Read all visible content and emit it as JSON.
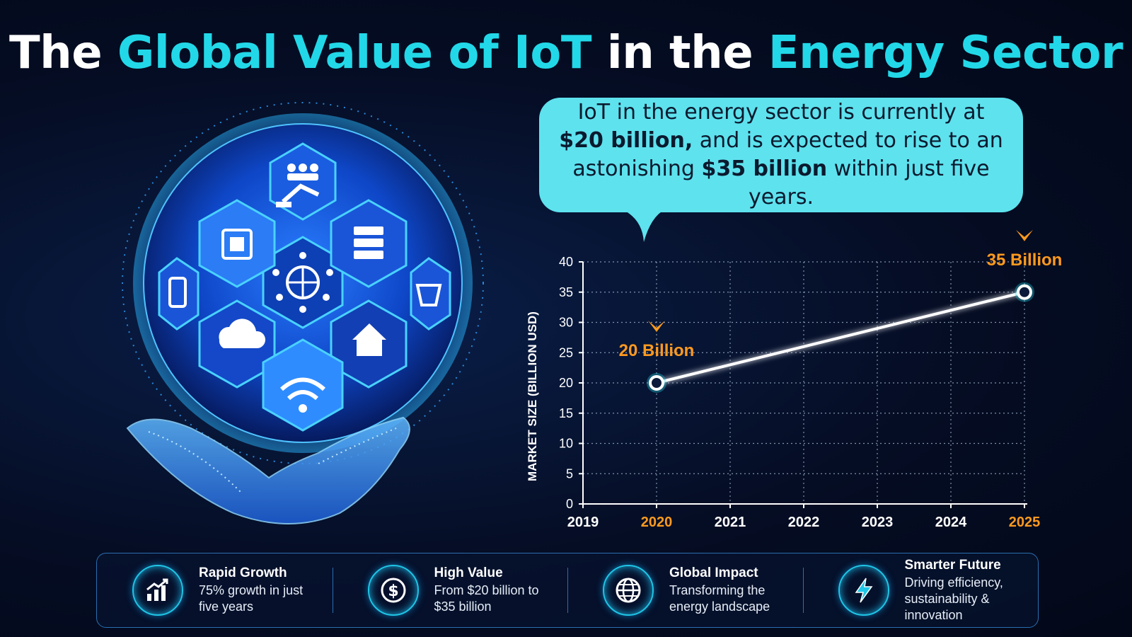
{
  "title": {
    "part1": "The ",
    "part2": "Global Value of IoT",
    "part3": " in the ",
    "part4": "Energy Sector"
  },
  "bubble": {
    "line1": "IoT in the energy sector is currently at",
    "value1": "$20 billion,",
    "line2": " and is expected to rise to an",
    "line3a": "astonishing ",
    "value2": "$35 billion",
    "line3b": " within just five years."
  },
  "colors": {
    "accent": "#22d8e8",
    "highlight": "#ff9a1f",
    "bubble": "#5ee2ee",
    "line": "#ffffff",
    "grid": "#9fb3cc"
  },
  "chart_data": {
    "type": "line",
    "ylabel": "MARKET SIZE (BILLION USD)",
    "xlabel": "",
    "categories": [
      "2019",
      "2020",
      "2021",
      "2022",
      "2023",
      "2024",
      "2025"
    ],
    "highlighted_categories": [
      "2020",
      "2025"
    ],
    "yticks": [
      "0",
      "5",
      "10",
      "15",
      "20",
      "25",
      "30",
      "35",
      "40"
    ],
    "ylim": [
      0,
      40
    ],
    "grid": true,
    "series": [
      {
        "x": [
          "2020",
          "2025"
        ],
        "values": [
          20,
          35
        ]
      }
    ],
    "annotations": [
      {
        "x": "2020",
        "y": 20,
        "text": "20 Billion"
      },
      {
        "x": "2025",
        "y": 35,
        "text": "35 Billion"
      }
    ]
  },
  "features": [
    {
      "icon": "growth-chart-icon",
      "title": "Rapid Growth",
      "desc": "75% growth in just five years"
    },
    {
      "icon": "dollar-icon",
      "title": "High Value",
      "desc": "From $20 billion to $35 billion"
    },
    {
      "icon": "globe-icon",
      "title": "Global Impact",
      "desc": "Transforming the energy landscape"
    },
    {
      "icon": "lightning-icon",
      "title": "Smarter Future",
      "desc": "Driving efficiency, sustainability & innovation"
    }
  ]
}
